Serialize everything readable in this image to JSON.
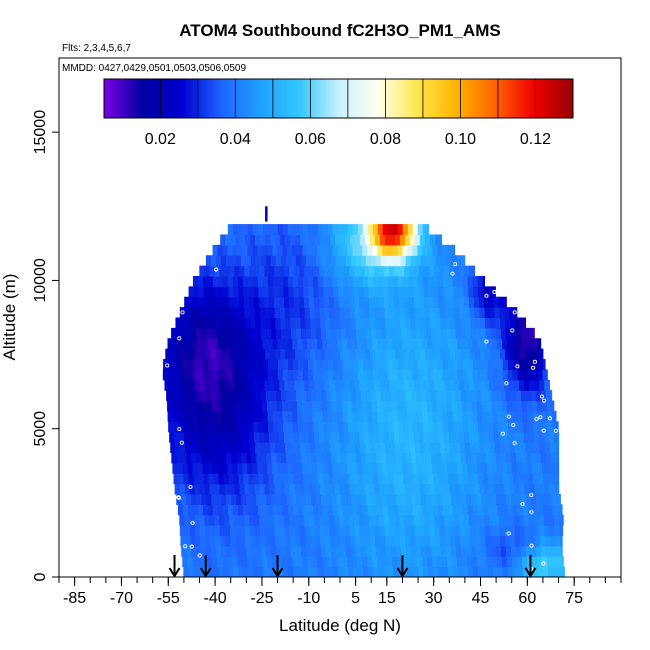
{
  "chart_data": {
    "type": "heatmap",
    "title": "ATOM4 Southbound fC2H3O_PM1_AMS",
    "flights_note": "Flts: 2,3,4,5,6,7",
    "dates_note": "MMDD: 0427,0429,0501,0503,0506,0509",
    "xlabel": "Latitude (deg N)",
    "ylabel": "Altitude (m)",
    "xlim": [
      -90,
      90
    ],
    "ylim": [
      0,
      17500
    ],
    "x_ticks": [
      -85,
      -70,
      -55,
      -40,
      -25,
      -10,
      5,
      15,
      30,
      45,
      60,
      75
    ],
    "x_tick_labels": [
      "-85",
      "-70",
      "-55",
      "-40",
      "-25",
      "-10",
      "5",
      "15",
      "30",
      "45",
      "60",
      "75"
    ],
    "y_ticks": [
      0,
      5000,
      10000,
      15000
    ],
    "y_tick_labels": [
      "0",
      "5000",
      "10000",
      "15000"
    ],
    "colorbar": {
      "min": 0.005,
      "max": 0.13,
      "ticks": [
        0.02,
        0.04,
        0.06,
        0.08,
        0.1,
        0.12
      ],
      "tick_labels": [
        "0.02",
        "0.04",
        "0.06",
        "0.08",
        "0.10",
        "0.12"
      ],
      "colors": [
        "#7a00e6",
        "#0000a0",
        "#0000d0",
        "#1e64ff",
        "#1ea0ff",
        "#32c8ff",
        "#c8f0ff",
        "#fffff0",
        "#ffe650",
        "#ffb400",
        "#ff6400",
        "#f00000",
        "#960000"
      ]
    },
    "flight_arrow_latitudes": [
      -53,
      -43,
      -20,
      20,
      61
    ],
    "data_envelope": {
      "altitudes_m": [
        0,
        1000,
        2000,
        3000,
        4000,
        5000,
        6000,
        7000,
        8000,
        9000,
        10000,
        11000,
        12000
      ],
      "lat_south": [
        -50,
        -51,
        -51.5,
        -53,
        -54,
        -55,
        -55.5,
        -57,
        -55,
        -51,
        -47,
        -41,
        -34
      ],
      "lat_north": [
        72,
        71,
        71.5,
        70,
        70,
        70,
        68,
        66,
        64,
        56,
        46,
        37,
        25
      ]
    },
    "value_field_description": "fC2H3O mostly 0.02-0.045; lowest values at high southern latitudes in the mid troposphere, higher (0.04-0.06) in the tropics, peak 0.09-0.11 near 10-25N at 11-12 km"
  }
}
